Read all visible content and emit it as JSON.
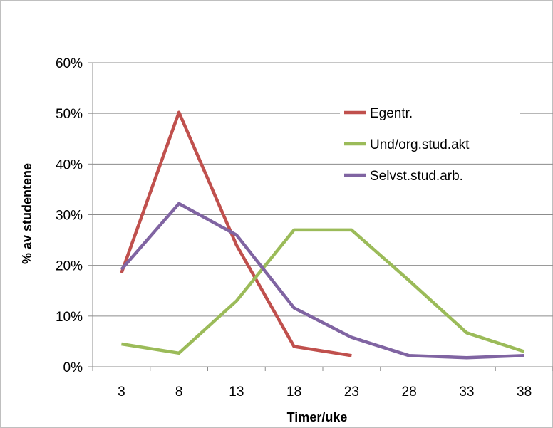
{
  "chart_data": {
    "type": "line",
    "title": "",
    "xlabel": "Timer/uke",
    "ylabel": "% av studentene",
    "x": [
      3,
      8,
      13,
      18,
      23,
      28,
      33,
      38
    ],
    "x_tick_labels": [
      "3",
      "8",
      "13",
      "18",
      "23",
      "28",
      "33",
      "38"
    ],
    "y_tick_labels": [
      "0%",
      "10%",
      "20%",
      "30%",
      "40%",
      "50%",
      "60%"
    ],
    "ylim": [
      0,
      60
    ],
    "grid": "horizontal",
    "legend_position": "right-inside",
    "series": [
      {
        "name": "Egentr.",
        "color": "#c0504d",
        "values": [
          18.5,
          50.2,
          24,
          4,
          2.2,
          null,
          null,
          null
        ]
      },
      {
        "name": "Und/org.stud.akt",
        "color": "#9bbb59",
        "values": [
          4.5,
          2.7,
          13,
          27,
          27,
          17,
          6.7,
          3
        ]
      },
      {
        "name": "Selvst.stud.arb.",
        "color": "#8064a2",
        "values": [
          19.2,
          32.2,
          26,
          11.6,
          5.8,
          2.2,
          1.8,
          2.2
        ]
      }
    ]
  }
}
